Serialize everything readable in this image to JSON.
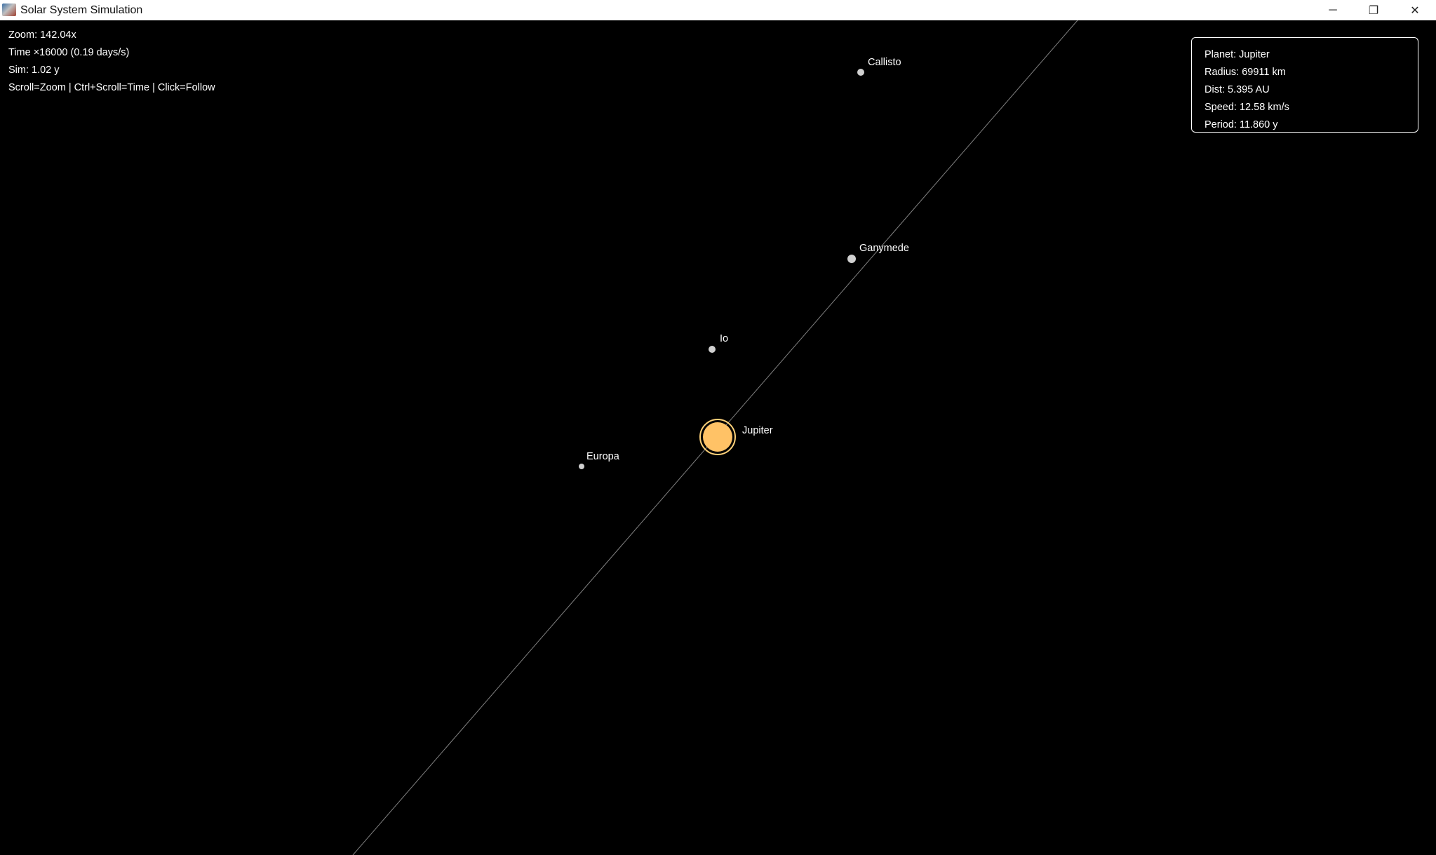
{
  "window": {
    "title": "Solar System Simulation",
    "controls": {
      "minimize": "─",
      "maximize": "❐",
      "close": "✕"
    }
  },
  "hud": {
    "zoom": "Zoom: 142.04x",
    "time": "Time ×16000 (0.19 days/s)",
    "sim": "Sim: 1.02 y",
    "help": "Scroll=Zoom | Ctrl+Scroll=Time | Click=Follow"
  },
  "info": {
    "planet": "Planet: Jupiter",
    "radius": "Radius: 69911 km",
    "dist": "Dist: 5.395 AU",
    "speed": "Speed: 12.58 km/s",
    "period": "Period: 11.860 y"
  },
  "bodies": {
    "jupiter": "Jupiter",
    "io": "Io",
    "europa": "Europa",
    "ganymede": "Ganymede",
    "callisto": "Callisto"
  },
  "colors": {
    "jupiter_fill": "#ffc266",
    "jupiter_ring": "#ffd27a",
    "moon": "#d0d0d0",
    "orbit": "#808080"
  }
}
